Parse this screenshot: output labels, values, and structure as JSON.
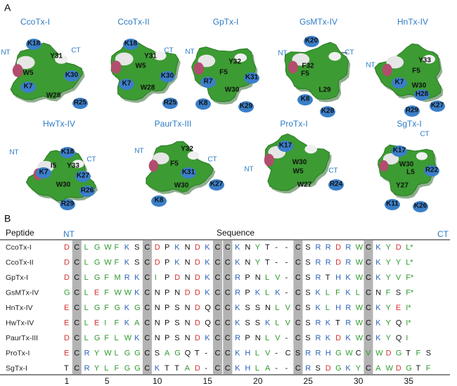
{
  "panel_a": {
    "label": "A",
    "structures": [
      {
        "name": "CcoTx-I",
        "labels": [
          "NT",
          "K18",
          "Y31",
          "CT",
          "W5",
          "K30",
          "K7",
          "W28",
          "R25"
        ]
      },
      {
        "name": "CcoTx-II",
        "labels": [
          "K18",
          "Y31",
          "CT",
          "W5",
          "K30",
          "K7",
          "W28",
          "R25"
        ]
      },
      {
        "name": "GpTx-I",
        "labels": [
          "NT",
          "Y32",
          "F5",
          "K31",
          "R7",
          "W30",
          "K8",
          "K29"
        ]
      },
      {
        "name": "GsMTx-IV",
        "labels": [
          "K20",
          "NT",
          "CT",
          "F32",
          "F5",
          "L29",
          "K8",
          "K28"
        ]
      },
      {
        "name": "HnTx-IV",
        "labels": [
          "NT",
          "Y33",
          "F5",
          "K7",
          "W30",
          "H28",
          "K27",
          "R29"
        ]
      },
      {
        "name": "HwTx-IV",
        "labels": [
          "NT",
          "K18",
          "I5",
          "Y33",
          "CT",
          "K7",
          "K27",
          "W30",
          "R26",
          "R29"
        ]
      },
      {
        "name": "PaurTx-III",
        "labels": [
          "NT",
          "Y32",
          "F5",
          "CT",
          "K31",
          "W30",
          "K27",
          "K8"
        ]
      },
      {
        "name": "ProTx-I",
        "labels": [
          "K17",
          "W30",
          "NT",
          "W5",
          "CT",
          "W27",
          "R24"
        ]
      },
      {
        "name": "SgTx-I",
        "labels": [
          "CT",
          "K17",
          "W30",
          "R22",
          "L5",
          "Y27",
          "K11",
          "K26"
        ]
      }
    ]
  },
  "panel_b": {
    "label": "B",
    "header": {
      "peptide": "Peptide",
      "nt": "NT",
      "sequence": "Sequence",
      "ct": "CT"
    },
    "cysteine_columns": [
      2,
      9,
      16,
      17,
      24,
      31
    ],
    "positions": [
      1,
      5,
      10,
      15,
      20,
      25,
      30,
      35
    ],
    "rows": [
      {
        "peptide": "CcoTx-I",
        "residues": [
          "D",
          "C",
          "L",
          "G",
          "W",
          "F",
          "K",
          "S",
          "C",
          "D",
          "P",
          "K",
          "N",
          "D",
          "K",
          "C",
          "C",
          "K",
          "N",
          "Y",
          "T",
          "-",
          "-",
          "C",
          "S",
          "R",
          "R",
          "D",
          "R",
          "W",
          "C",
          "K",
          "Y",
          "D",
          "L*"
        ]
      },
      {
        "peptide": "CcoTx-II",
        "residues": [
          "D",
          "C",
          "L",
          "G",
          "W",
          "F",
          "K",
          "S",
          "C",
          "D",
          "P",
          "K",
          "N",
          "D",
          "K",
          "C",
          "C",
          "K",
          "N",
          "Y",
          "T",
          "-",
          "-",
          "C",
          "S",
          "R",
          "R",
          "D",
          "R",
          "W",
          "C",
          "K",
          "Y",
          "Y",
          "L*"
        ]
      },
      {
        "peptide": "GpTx-I",
        "residues": [
          "D",
          "C",
          "L",
          "G",
          "F",
          "M",
          "R",
          "K",
          "C",
          "I",
          "P",
          "D",
          "N",
          "D",
          "K",
          "C",
          "C",
          "R",
          "P",
          "N",
          "L",
          "V",
          "-",
          "C",
          "S",
          "R",
          "T",
          "H",
          "K",
          "W",
          "C",
          "K",
          "Y",
          "V",
          "F*"
        ]
      },
      {
        "peptide": "GsMTx-IV",
        "residues": [
          "G",
          "C",
          "L",
          "E",
          "F",
          "W",
          "W",
          "K",
          "C",
          "N",
          "P",
          "N",
          "D",
          "D",
          "K",
          "C",
          "C",
          "R",
          "P",
          "K",
          "L",
          "K",
          "-",
          "C",
          "S",
          "K",
          "L",
          "F",
          "K",
          "L",
          "C",
          "N",
          "F",
          "S",
          "F*"
        ]
      },
      {
        "peptide": "HnTx-IV",
        "residues": [
          "E",
          "C",
          "L",
          "G",
          "F",
          "G",
          "K",
          "G",
          "C",
          "N",
          "P",
          "S",
          "N",
          "D",
          "Q",
          "C",
          "C",
          "K",
          "S",
          "S",
          "N",
          "L",
          "V",
          "C",
          "S",
          "K",
          "L",
          "H",
          "R",
          "W",
          "C",
          "K",
          "Y",
          "E",
          "I*"
        ]
      },
      {
        "peptide": "HwTx-IV",
        "residues": [
          "E",
          "C",
          "L",
          "E",
          "I",
          "F",
          "K",
          "A",
          "C",
          "N",
          "P",
          "S",
          "N",
          "D",
          "Q",
          "C",
          "C",
          "K",
          "S",
          "S",
          "K",
          "L",
          "V",
          "C",
          "S",
          "R",
          "K",
          "T",
          "R",
          "W",
          "C",
          "K",
          "Y",
          "Q",
          "I*"
        ]
      },
      {
        "peptide": "PaurTx-III",
        "residues": [
          "D",
          "C",
          "L",
          "G",
          "F",
          "L",
          "W",
          "K",
          "C",
          "N",
          "P",
          "S",
          "N",
          "D",
          "K",
          "C",
          "C",
          "R",
          "P",
          "N",
          "L",
          "V",
          "-",
          "C",
          "S",
          "R",
          "K",
          "D",
          "K",
          "W",
          "C",
          "K",
          "Y",
          "Q",
          "I"
        ]
      },
      {
        "peptide": "ProTx-I",
        "residues": [
          "E",
          "C",
          "R",
          "Y",
          "W",
          "L",
          "G",
          "G",
          "C",
          "S",
          "A",
          "G",
          "Q",
          "T",
          "-",
          "C",
          "C",
          "K",
          "H",
          "L",
          "V",
          "-",
          "C",
          "S",
          "R",
          "R",
          "H",
          "G",
          "W",
          "C",
          "V",
          "W",
          "D",
          "G",
          "T",
          "F",
          "S"
        ]
      },
      {
        "peptide": "SgTx-I",
        "residues": [
          "T",
          "C",
          "R",
          "Y",
          "L",
          "F",
          "G",
          "G",
          "C",
          "K",
          "T",
          "T",
          "A",
          "D",
          "-",
          "C",
          "C",
          "K",
          "H",
          "L",
          "A",
          "-",
          "-",
          "C",
          "R",
          "S",
          "D",
          "G",
          "K",
          "Y",
          "C",
          "A",
          "W",
          "D",
          "G",
          "T",
          "F"
        ]
      }
    ]
  }
}
